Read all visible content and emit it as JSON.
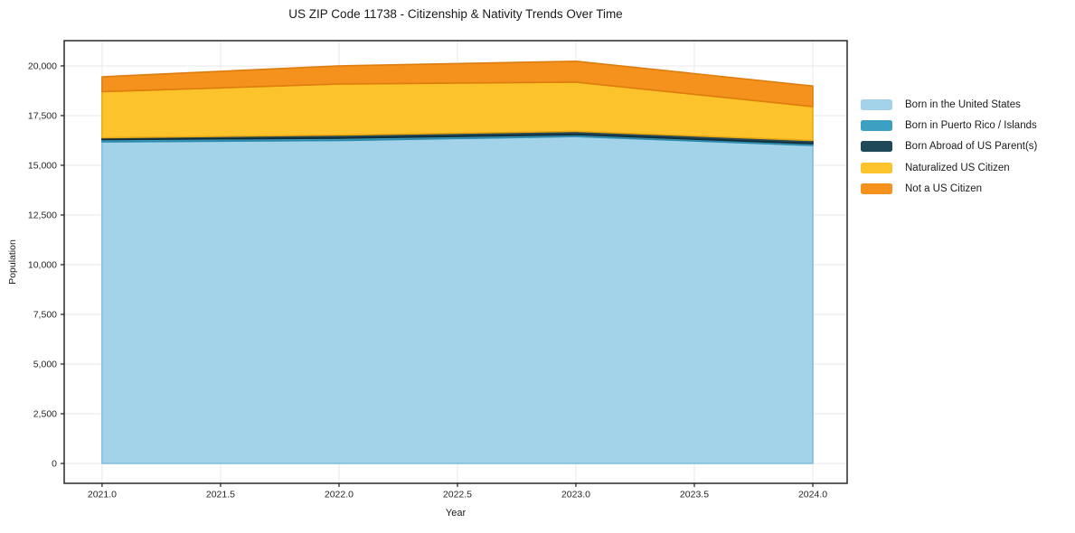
{
  "title": "US ZIP Code 11738 - Citizenship & Nativity Trends Over Time",
  "chart_data": {
    "type": "area",
    "stacked": true,
    "title": "US ZIP Code 11738 - Citizenship & Nativity Trends Over Time",
    "xlabel": "Year",
    "ylabel": "Population",
    "x": [
      2021,
      2022,
      2023,
      2024
    ],
    "xlim": [
      2020.84,
      2024.145
    ],
    "ylim": [
      -1000,
      21270
    ],
    "grid": true,
    "legend_position": "right-outside",
    "x_tick_values": [
      2021.0,
      2021.5,
      2022.0,
      2022.5,
      2023.0,
      2023.5,
      2024.0
    ],
    "x_tick_labels": [
      "2021.0",
      "2021.5",
      "2022.0",
      "2022.5",
      "2023.0",
      "2023.5",
      "2024.0"
    ],
    "y_tick_values": [
      0,
      2500,
      5000,
      7500,
      10000,
      12500,
      15000,
      17500,
      20000
    ],
    "y_tick_labels": [
      "0",
      "2,500",
      "5,000",
      "7,500",
      "10,000",
      "12,500",
      "15,000",
      "17,500",
      "20,000"
    ],
    "series": [
      {
        "name": "Born in the United States",
        "color": "#A3D3E9",
        "edge": "#7EBEDC",
        "values": [
          16180,
          16250,
          16450,
          16000
        ]
      },
      {
        "name": "Born in Puerto Rico / Islands",
        "color": "#3CA0C2",
        "edge": "#2C89AB",
        "values": [
          115,
          115,
          95,
          90
        ]
      },
      {
        "name": "Born Abroad of US Parent(s)",
        "color": "#1F4858",
        "edge": "#122B35",
        "values": [
          90,
          155,
          160,
          160
        ]
      },
      {
        "name": "Naturalized US Citizen",
        "color": "#FDC32D",
        "edge": "#E9A812",
        "values": [
          2315,
          2570,
          2480,
          1700
        ]
      },
      {
        "name": "Not a US Citizen",
        "color": "#F5921E",
        "edge": "#DD7D0E",
        "values": [
          750,
          910,
          1050,
          1040
        ]
      }
    ],
    "totals": [
      19450,
      20000,
      20235,
      18990
    ],
    "colors": {
      "grid": "#e8e8e8",
      "frame": "#1a1a1a",
      "tick_text": "#262626",
      "plot_background": "#ffffff"
    }
  }
}
